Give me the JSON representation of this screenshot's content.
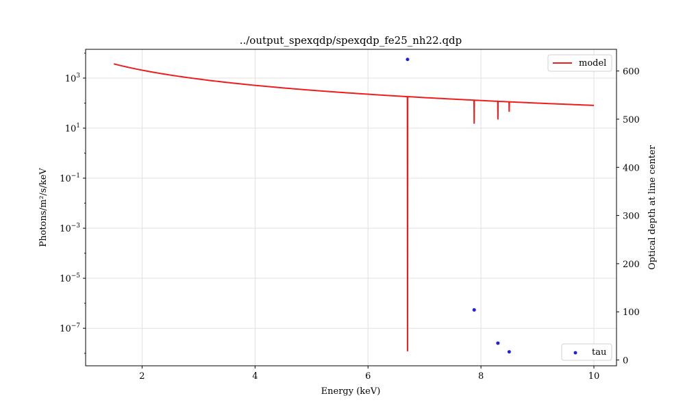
{
  "chart_data": {
    "type": "line",
    "title": "../output_spexqdp/spexqdp_fe25_nh22.qdp",
    "xlabel": "Energy (keV)",
    "ylabel_left": "Photons/m²/s/keV",
    "ylabel_right": "Optical depth at line center",
    "xlim": [
      1.0,
      10.4
    ],
    "ylim_left_log10": [
      -8.5,
      4.15
    ],
    "yscale_left": "log",
    "ylim_right": [
      -12,
      645
    ],
    "grid": true,
    "x_ticks": [
      2,
      4,
      6,
      8,
      10
    ],
    "left_ticks": [
      {
        "exp": 3,
        "base": "10",
        "sup": "3"
      },
      {
        "exp": 1,
        "base": "10",
        "sup": "1"
      },
      {
        "exp": -1,
        "base": "10",
        "sup": "−1"
      },
      {
        "exp": -3,
        "base": "10",
        "sup": "−3"
      },
      {
        "exp": -5,
        "base": "10",
        "sup": "−5"
      },
      {
        "exp": -7,
        "base": "10",
        "sup": "−7"
      }
    ],
    "right_ticks": [
      0,
      100,
      200,
      300,
      400,
      500,
      600
    ],
    "series": [
      {
        "name": "model",
        "kind": "line",
        "color": "#ee1c1c",
        "continuum": {
          "x_start": 1.5,
          "x_end": 10.0,
          "y_start": 3700,
          "y_end": 81
        },
        "lines": [
          {
            "x": 6.7,
            "y_min": 1.2e-08
          },
          {
            "x": 7.88,
            "y_min": 15
          },
          {
            "x": 8.3,
            "y_min": 22
          },
          {
            "x": 8.5,
            "y_min": 45
          }
        ]
      },
      {
        "name": "tau",
        "kind": "scatter",
        "color": "#1f1fe0",
        "x": [
          6.7,
          7.88,
          8.3,
          8.5
        ],
        "y": [
          624,
          104,
          35,
          17
        ]
      }
    ],
    "legend": {
      "model_position": "top-right",
      "tau_position": "bottom-right"
    }
  }
}
